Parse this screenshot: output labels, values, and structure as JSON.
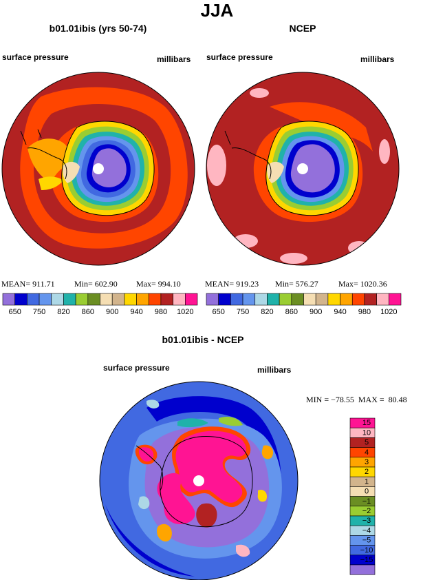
{
  "page_title": "JJA",
  "panels": {
    "left": {
      "title": "b01.01ibis (yrs 50-74)",
      "left_label": "surface pressure",
      "right_label": "millibars",
      "stats": {
        "mean": "MEAN= 911.71",
        "min": "Min= 602.90",
        "max": "Max= 994.10"
      }
    },
    "right": {
      "title": "NCEP",
      "left_label": "surface pressure",
      "right_label": "millibars",
      "stats": {
        "mean": "MEAN= 919.23",
        "min": "Min= 576.27",
        "max": "Max= 1020.36"
      }
    },
    "diff": {
      "title": "b01.01ibis - NCEP",
      "left_label": "surface pressure",
      "right_label": "millibars",
      "stats": "MIN = −78.55  MAX =  80.48"
    }
  },
  "colorbar_main": {
    "colors": [
      "#9370db",
      "#0000cd",
      "#4169e1",
      "#6495ed",
      "#add8e6",
      "#20b2aa",
      "#9acd32",
      "#6b8e23",
      "#f5deb3",
      "#d2b48c",
      "#ffd700",
      "#ffa500",
      "#ff4500",
      "#b22222",
      "#ffb6c1",
      "#ff1493"
    ],
    "labels": [
      "650",
      "750",
      "820",
      "860",
      "900",
      "940",
      "980",
      "1020"
    ]
  },
  "colorbar_diff": {
    "colors": [
      "#ff1493",
      "#ffb6c1",
      "#b22222",
      "#ff4500",
      "#ffa500",
      "#ffd700",
      "#d2b48c",
      "#f5deb3",
      "#6b8e23",
      "#9acd32",
      "#20b2aa",
      "#add8e6",
      "#6495ed",
      "#4169e1",
      "#0000cd",
      "#9370db"
    ],
    "labels": [
      "15",
      "10",
      "5",
      "4",
      "3",
      "2",
      "1",
      "0",
      "−1",
      "−2",
      "−3",
      "−4",
      "−5",
      "−10",
      "−15"
    ]
  }
}
